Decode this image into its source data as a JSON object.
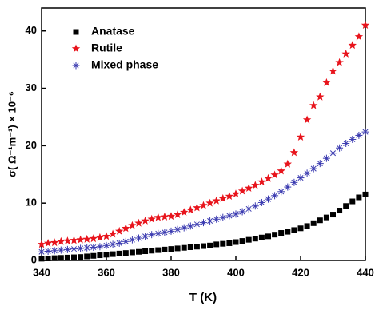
{
  "chart_data": {
    "type": "scatter",
    "x_label": "T (K)",
    "y_label": "σ( Ω⁻¹m⁻¹) × 10⁻⁶",
    "x": [
      340,
      342,
      344,
      346,
      348,
      350,
      352,
      354,
      356,
      358,
      360,
      362,
      364,
      366,
      368,
      370,
      372,
      374,
      376,
      378,
      380,
      382,
      384,
      386,
      388,
      390,
      392,
      394,
      396,
      398,
      400,
      402,
      404,
      406,
      408,
      410,
      412,
      414,
      416,
      418,
      420,
      422,
      424,
      426,
      428,
      430,
      432,
      434,
      436,
      438,
      440
    ],
    "series": [
      {
        "name": "Anatase",
        "color": "#000000",
        "marker": "square",
        "values": [
          0.3,
          0.35,
          0.4,
          0.45,
          0.5,
          0.55,
          0.6,
          0.7,
          0.8,
          0.9,
          1.0,
          1.1,
          1.2,
          1.3,
          1.4,
          1.5,
          1.6,
          1.7,
          1.8,
          1.9,
          2.0,
          2.1,
          2.2,
          2.3,
          2.4,
          2.5,
          2.6,
          2.8,
          2.9,
          3.0,
          3.2,
          3.4,
          3.6,
          3.8,
          4.0,
          4.2,
          4.5,
          4.8,
          5.0,
          5.3,
          5.6,
          6.0,
          6.5,
          7.0,
          7.5,
          8.0,
          8.7,
          9.5,
          10.3,
          11.0,
          11.5
        ]
      },
      {
        "name": "Rutile",
        "color": "#e8141c",
        "marker": "star",
        "values": [
          2.8,
          3.0,
          3.1,
          3.3,
          3.4,
          3.5,
          3.6,
          3.7,
          3.8,
          4.0,
          4.2,
          4.6,
          5.1,
          5.6,
          6.1,
          6.5,
          6.9,
          7.2,
          7.5,
          7.6,
          7.7,
          8.0,
          8.4,
          8.8,
          9.2,
          9.6,
          10.0,
          10.4,
          10.8,
          11.2,
          11.6,
          12.1,
          12.6,
          13.1,
          13.7,
          14.3,
          14.9,
          15.6,
          16.8,
          18.8,
          21.5,
          24.5,
          27.0,
          28.5,
          31.0,
          33.0,
          34.5,
          36.0,
          37.5,
          39.0,
          41.0
        ]
      },
      {
        "name": "Mixed phase",
        "color": "#3a3ab0",
        "marker": "asterisk",
        "values": [
          1.5,
          1.6,
          1.7,
          1.8,
          1.9,
          2.0,
          2.1,
          2.2,
          2.3,
          2.4,
          2.6,
          2.8,
          3.0,
          3.3,
          3.6,
          3.9,
          4.2,
          4.5,
          4.7,
          4.9,
          5.1,
          5.4,
          5.7,
          6.0,
          6.3,
          6.6,
          6.9,
          7.2,
          7.5,
          7.8,
          8.1,
          8.5,
          9.0,
          9.5,
          10.1,
          10.7,
          11.3,
          12.0,
          12.8,
          13.6,
          14.4,
          15.2,
          16.0,
          16.9,
          17.8,
          18.7,
          19.6,
          20.4,
          21.1,
          21.8,
          22.4
        ]
      }
    ],
    "xlim": [
      340,
      440
    ],
    "xticks": [
      340,
      360,
      380,
      400,
      420,
      440
    ],
    "ylim": [
      0,
      44
    ],
    "yticks": [
      0,
      10,
      20,
      30,
      40
    ],
    "legend": "upper-left"
  }
}
